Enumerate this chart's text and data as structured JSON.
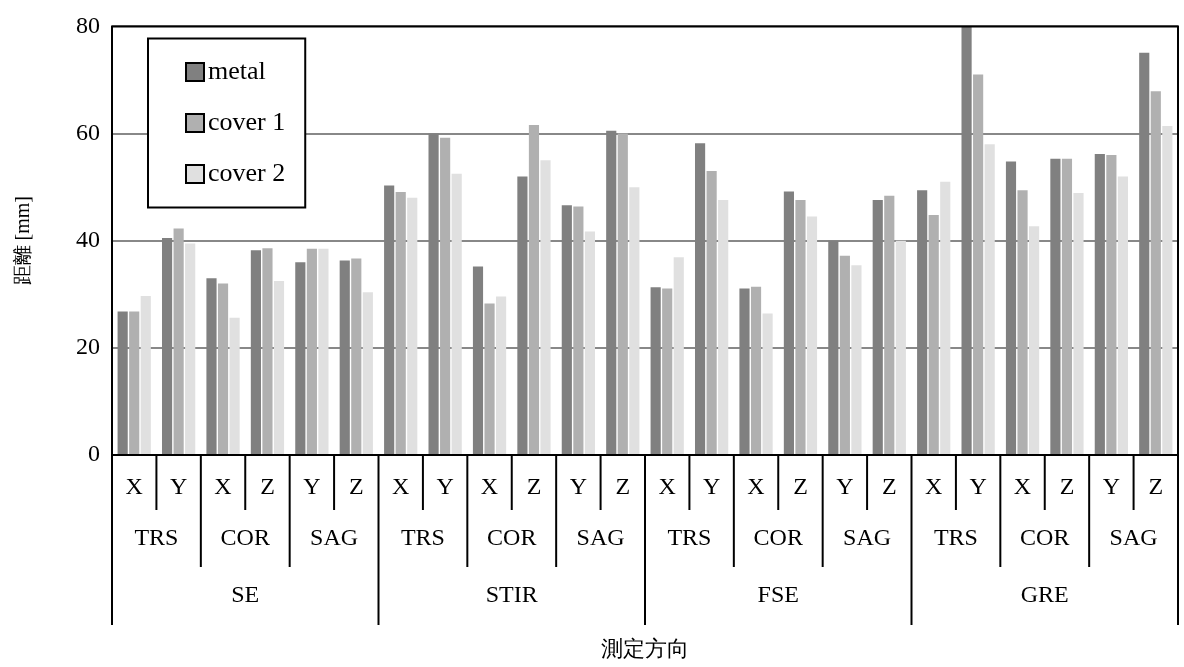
{
  "chart_data": {
    "type": "bar",
    "ylabel": "距離 [mm]",
    "categories": [
      "X",
      "Y",
      "X",
      "Z",
      "Y",
      "Z",
      "X",
      "Y",
      "X",
      "Z",
      "Y",
      "Z",
      "X",
      "Y",
      "X",
      "Z",
      "Y",
      "Z",
      "X",
      "Y",
      "X",
      "Z",
      "Y",
      "Z"
    ],
    "annotations": [
      "TRS",
      "COR",
      "SAG",
      "TRS",
      "COR",
      "SAG",
      "TRS",
      "COR",
      "SAG",
      "TRS",
      "COR",
      "SAG",
      "SE",
      "STIR",
      "FSE",
      "GRE",
      "測定方向"
    ],
    "series": [
      {
        "name": "metal",
        "color": "#808080",
        "values": [
          26.8,
          40.5,
          33,
          38.2,
          36,
          36.3,
          50.3,
          60,
          35.2,
          52,
          46.6,
          60.5,
          31.3,
          58.2,
          31.1,
          49.2,
          40,
          47.6,
          49.4,
          80,
          54.8,
          55.3,
          56.2,
          75.1
        ]
      },
      {
        "name": "cover 1",
        "color": "#b0b0b0",
        "values": [
          26.8,
          42.3,
          32,
          38.6,
          38.5,
          36.7,
          49.1,
          59.2,
          28.3,
          61.6,
          46.4,
          60,
          31.1,
          53,
          31.4,
          47.6,
          37.2,
          48.4,
          44.8,
          71,
          49.4,
          55.3,
          56,
          67.9
        ]
      },
      {
        "name": "cover 2",
        "color": "#e0e0e0",
        "values": [
          29.7,
          39.5,
          25.6,
          32.5,
          38.5,
          30.4,
          48,
          52.5,
          29.6,
          55,
          41.7,
          50,
          36.9,
          47.6,
          26.4,
          44.5,
          35.4,
          40,
          51,
          58,
          42.7,
          48.9,
          52,
          61.4
        ]
      }
    ],
    "ylim": [
      0,
      80
    ],
    "yticks": [
      0,
      20,
      40,
      60,
      80
    ],
    "grid": "y",
    "legend": "top left"
  }
}
